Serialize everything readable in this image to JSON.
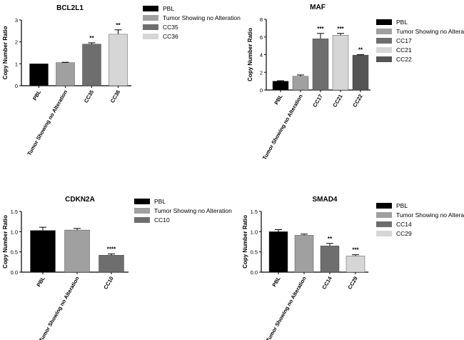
{
  "chart_data": [
    {
      "type": "bar",
      "title": "BCL2L1",
      "ylabel": "Copy Number Ratio",
      "xlabel": "",
      "ylim": [
        0,
        3
      ],
      "yticks": [
        0,
        1,
        2,
        3
      ],
      "grid": false,
      "legend": "right",
      "categories": [
        "PBL",
        "Tumor Showing no Alteration",
        "CC35",
        "CC36"
      ],
      "values": [
        1.0,
        1.05,
        1.9,
        2.35
      ],
      "errors": [
        0.0,
        0.02,
        0.06,
        0.2
      ],
      "annotations": [
        "",
        "",
        "**",
        "**"
      ],
      "colors": [
        "#000000",
        "#a0a0a0",
        "#6e6e6e",
        "#d6d6d6"
      ],
      "legend_entries": [
        "PBL",
        "Tumor Showing no Alteration",
        "CC35",
        "CC36"
      ]
    },
    {
      "type": "bar",
      "title": "MAF",
      "ylabel": "Copy Number Ratio",
      "xlabel": "",
      "ylim": [
        0,
        8
      ],
      "yticks": [
        0,
        2,
        4,
        6,
        8
      ],
      "grid": false,
      "legend": "right",
      "categories": [
        "PBL",
        "Tumor Showing no Alteration",
        "CC17",
        "CC21",
        "CC22"
      ],
      "values": [
        1.0,
        1.55,
        5.8,
        6.2,
        3.95
      ],
      "errors": [
        0.05,
        0.15,
        0.6,
        0.2,
        0.05
      ],
      "annotations": [
        "",
        "",
        "***",
        "***",
        "**"
      ],
      "colors": [
        "#000000",
        "#a0a0a0",
        "#6e6e6e",
        "#d6d6d6",
        "#555555"
      ],
      "legend_entries": [
        "PBL",
        "Tumor Showing no Alteration",
        "CC17",
        "CC21",
        "CC22"
      ]
    },
    {
      "type": "bar",
      "title": "CDKN2A",
      "ylabel": "Copy Number Ratio",
      "xlabel": "",
      "ylim": [
        0,
        1.5
      ],
      "yticks": [
        0.0,
        0.5,
        1.0,
        1.5
      ],
      "grid": false,
      "legend": "right",
      "categories": [
        "PBL",
        "Tumor Showing no Alteration",
        "CC10"
      ],
      "values": [
        1.03,
        1.04,
        0.42
      ],
      "errors": [
        0.08,
        0.04,
        0.03
      ],
      "annotations": [
        "",
        "",
        "****"
      ],
      "colors": [
        "#000000",
        "#a0a0a0",
        "#6e6e6e"
      ],
      "legend_entries": [
        "PBL",
        "Tumor Showing no Alteration",
        "CC10"
      ]
    },
    {
      "type": "bar",
      "title": "SMAD4",
      "ylabel": "Copy Number Ratio",
      "xlabel": "",
      "ylim": [
        0,
        1.5
      ],
      "yticks": [
        0.0,
        0.5,
        1.0,
        1.5
      ],
      "grid": false,
      "legend": "right",
      "categories": [
        "PBL",
        "Tumor Showing no Alteration",
        "CC14",
        "CC29"
      ],
      "values": [
        1.0,
        0.91,
        0.65,
        0.4
      ],
      "errors": [
        0.05,
        0.03,
        0.06,
        0.03
      ],
      "annotations": [
        "",
        "",
        "**",
        "***"
      ],
      "colors": [
        "#000000",
        "#a0a0a0",
        "#6e6e6e",
        "#d6d6d6"
      ],
      "legend_entries": [
        "PBL",
        "Tumor Showing no Alteration",
        "CC14",
        "CC29"
      ]
    }
  ]
}
